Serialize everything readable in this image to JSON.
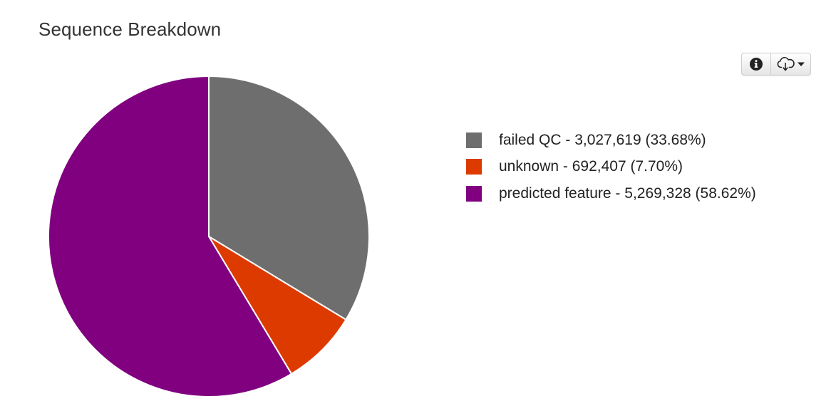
{
  "title": "Sequence Breakdown",
  "toolbar": {
    "info_icon": "info-icon",
    "download_icon": "cloud-download-icon",
    "dropdown_icon": "caret-down-icon"
  },
  "chart_data": {
    "type": "pie",
    "title": "Sequence Breakdown",
    "legend_position": "right",
    "slices": [
      {
        "label": "failed QC",
        "value": 3027619,
        "percent": 33.68,
        "color": "#6e6e6e",
        "legend": "failed QC - 3,027,619 (33.68%)"
      },
      {
        "label": "unknown",
        "value": 692407,
        "percent": 7.7,
        "color": "#dd3a00",
        "legend": "unknown - 692,407 (7.70%)"
      },
      {
        "label": "predicted feature",
        "value": 5269328,
        "percent": 58.62,
        "color": "#800080",
        "legend": "predicted feature - 5,269,328 (58.62%)"
      }
    ]
  }
}
